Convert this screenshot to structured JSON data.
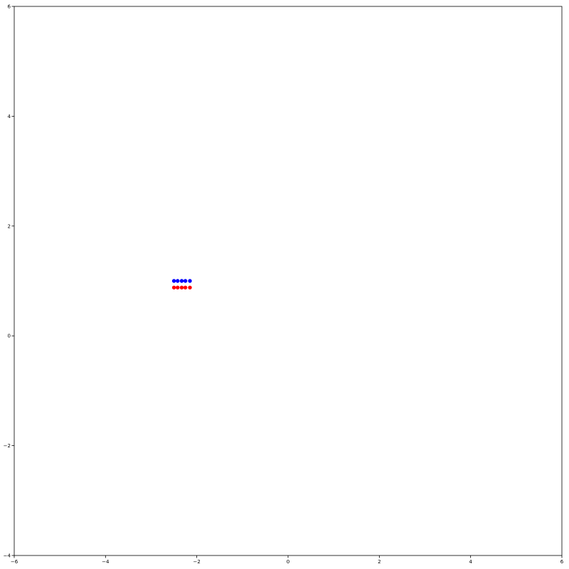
{
  "chart_data": {
    "type": "scatter",
    "title": "",
    "xlabel": "",
    "ylabel": "",
    "xlim": [
      -6,
      6
    ],
    "ylim": [
      -4,
      6
    ],
    "grid": false,
    "xticks": [
      -6,
      -4,
      -2,
      0,
      2,
      4,
      6
    ],
    "yticks": [
      -4,
      -2,
      0,
      2,
      4,
      6
    ],
    "xtick_labels": [
      "−6",
      "−4",
      "−2",
      "0",
      "2",
      "4",
      "6"
    ],
    "ytick_labels": [
      "−4",
      "−2",
      "0",
      "2",
      "4",
      "6"
    ],
    "series": [
      {
        "color": "#0000ff",
        "points": [
          [
            -2.5,
            1.0
          ],
          [
            -2.42,
            1.0
          ],
          [
            -2.33,
            1.0
          ],
          [
            -2.25,
            1.0
          ],
          [
            -2.15,
            1.0
          ]
        ]
      },
      {
        "color": "#ff0000",
        "points": [
          [
            -2.5,
            0.88
          ],
          [
            -2.42,
            0.88
          ],
          [
            -2.33,
            0.88
          ],
          [
            -2.25,
            0.88
          ],
          [
            -2.15,
            0.88
          ]
        ]
      }
    ]
  }
}
